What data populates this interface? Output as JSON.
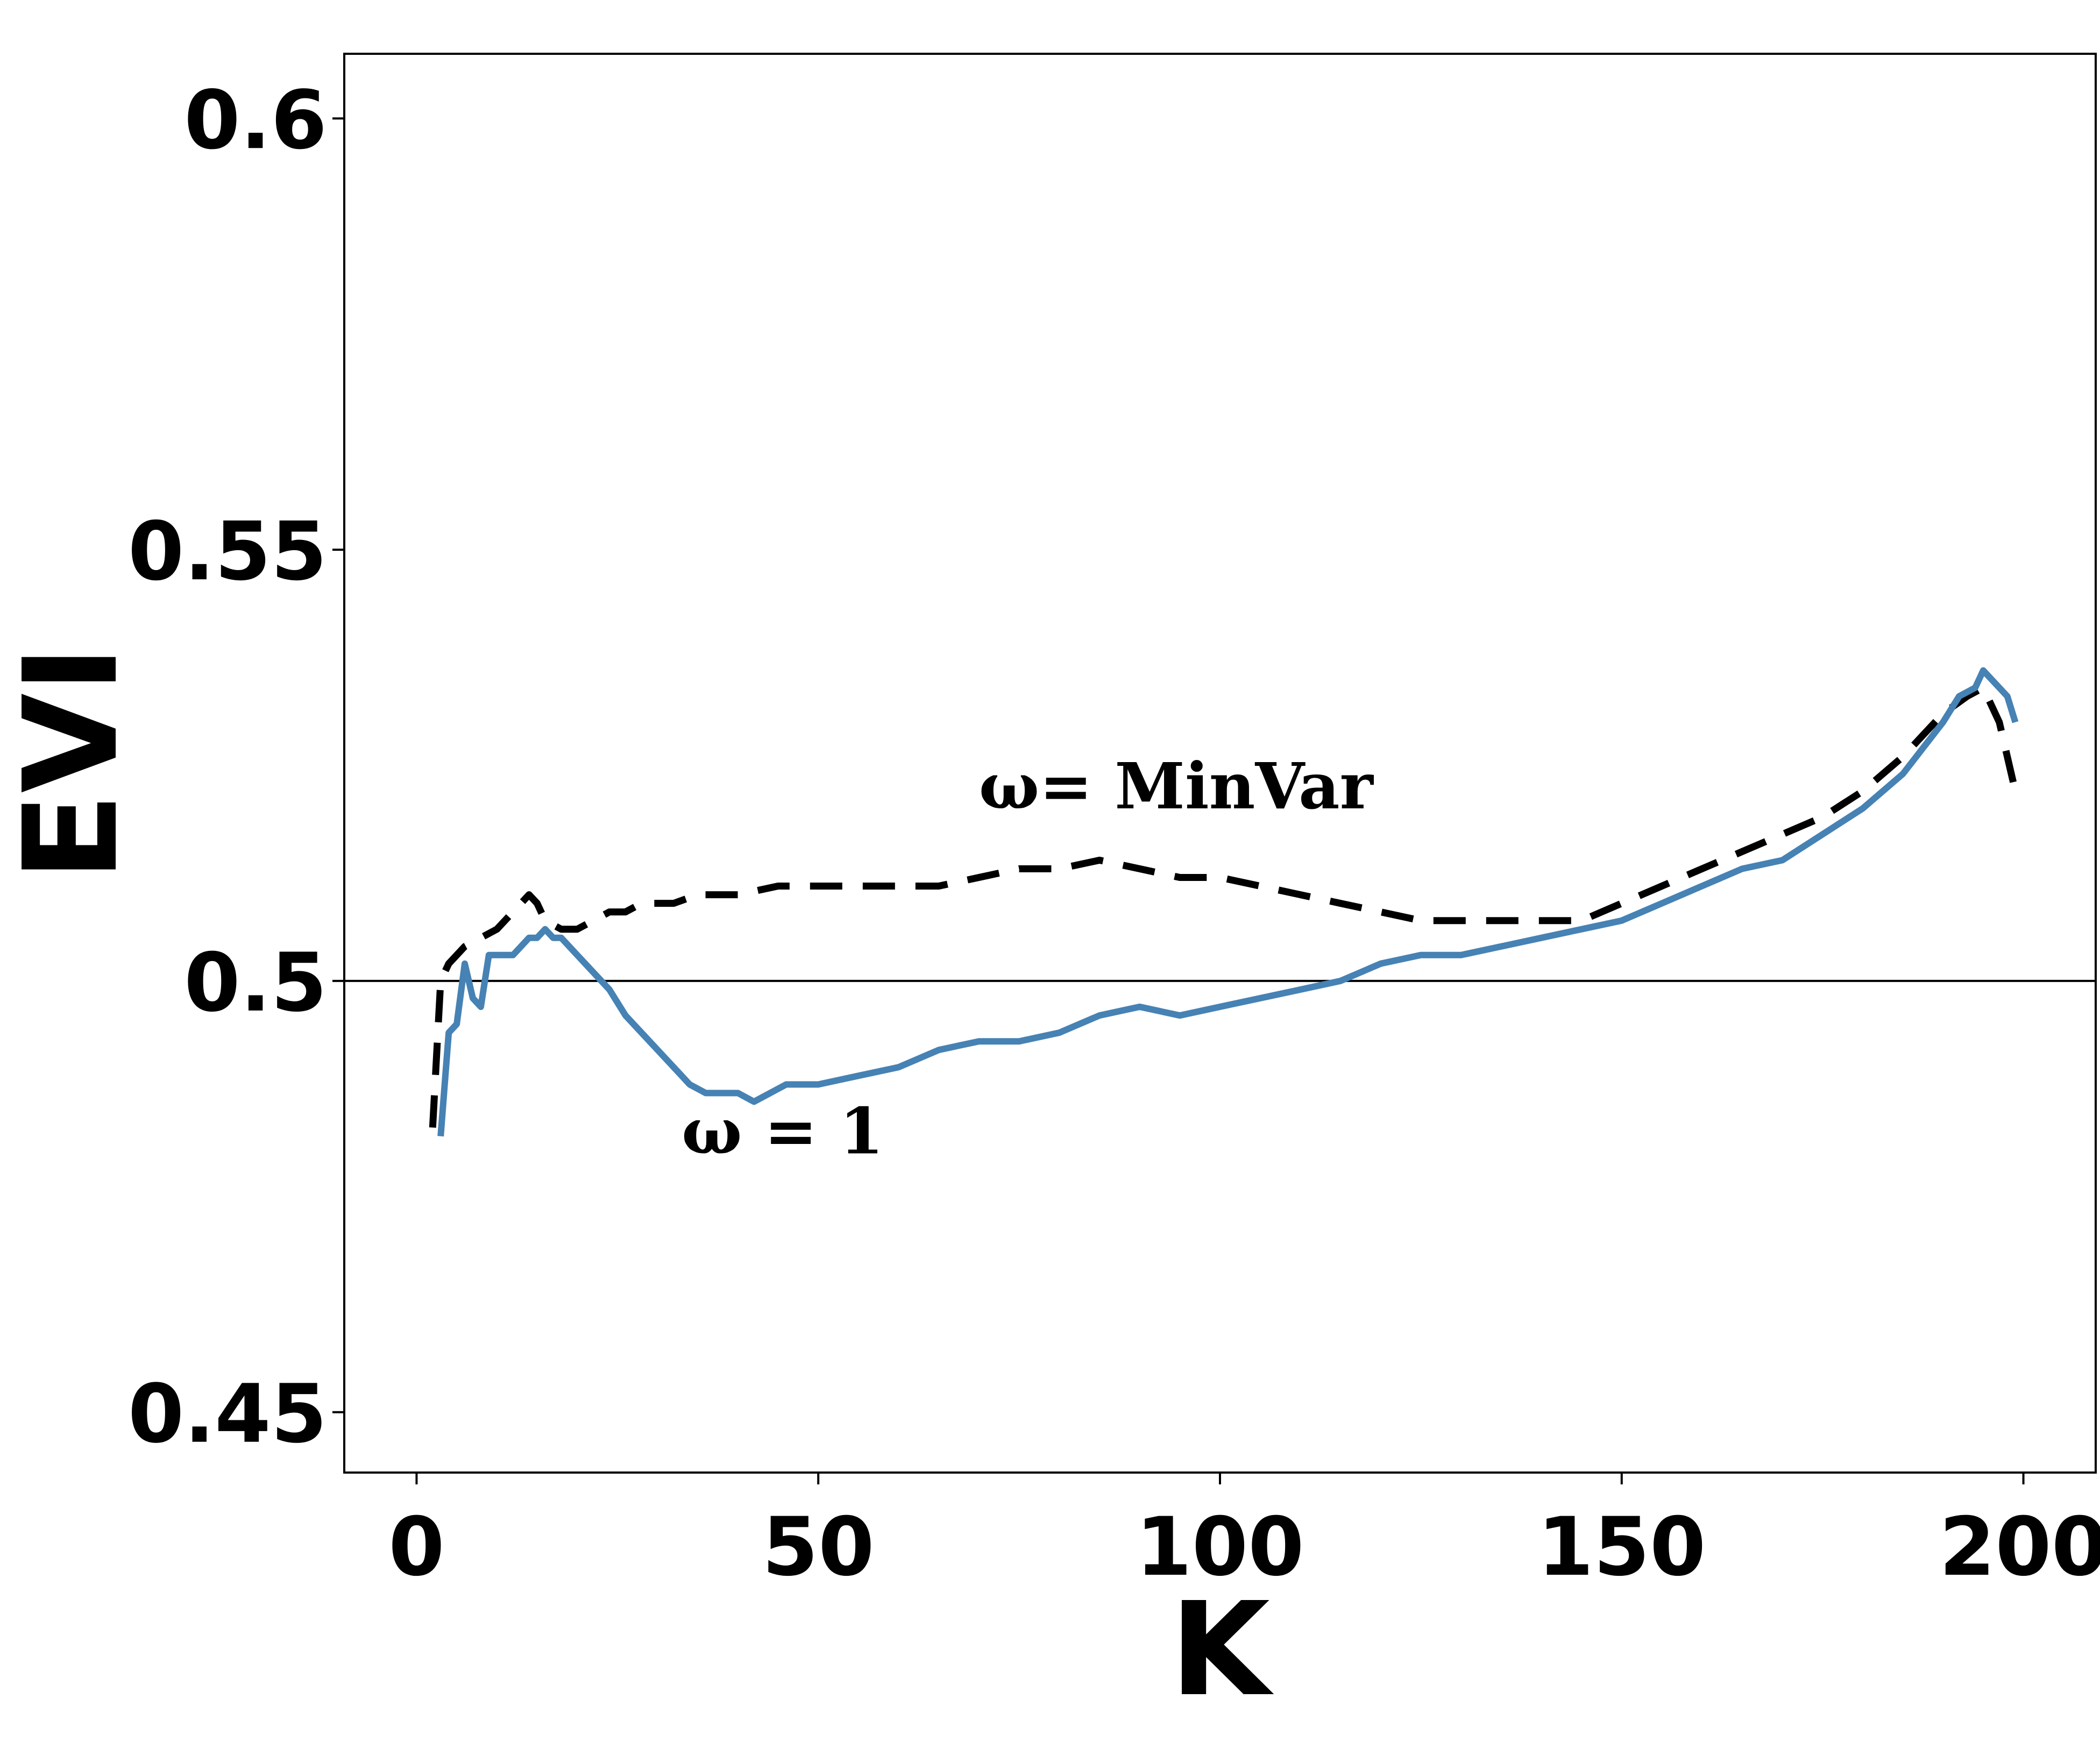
{
  "chart_data": {
    "type": "line",
    "title": "",
    "xlabel": "K",
    "ylabel": "EVI",
    "xlim": [
      -9,
      209
    ],
    "ylim": [
      0.443,
      0.6075
    ],
    "xticks": [
      0,
      50,
      100,
      150,
      200
    ],
    "yticks": [
      0.45,
      0.5,
      0.55,
      0.6
    ],
    "xtick_labels": [
      "0",
      "50",
      "100",
      "150",
      "200"
    ],
    "ytick_labels": [
      "0.45",
      "0.5",
      "0.55",
      "0.6"
    ],
    "grid": false,
    "legend": "none",
    "reference_line": {
      "y": 0.5,
      "color": "#000000"
    },
    "annotations": [
      {
        "text": "ω= MinVar",
        "x": 70,
        "y": 0.52
      },
      {
        "text": "ω = 1",
        "x": 33,
        "y": 0.48
      }
    ],
    "series": [
      {
        "color": "#000000",
        "style": "dashed",
        "x": [
          2,
          3,
          4,
          5,
          6,
          8,
          10,
          12,
          14,
          15,
          16,
          18,
          20,
          22,
          24,
          26,
          28,
          30,
          32,
          35,
          38,
          40,
          45,
          50,
          55,
          60,
          65,
          70,
          75,
          80,
          85,
          90,
          95,
          100,
          105,
          110,
          115,
          120,
          125,
          130,
          135,
          140,
          145,
          150,
          155,
          160,
          165,
          170,
          175,
          180,
          185,
          190,
          193,
          195,
          197,
          199
        ],
        "y": [
          0.483,
          0.5,
          0.502,
          0.503,
          0.504,
          0.505,
          0.506,
          0.508,
          0.51,
          0.509,
          0.507,
          0.506,
          0.506,
          0.507,
          0.508,
          0.508,
          0.509,
          0.509,
          0.509,
          0.51,
          0.51,
          0.51,
          0.511,
          0.511,
          0.511,
          0.511,
          0.511,
          0.512,
          0.513,
          0.513,
          0.514,
          0.513,
          0.512,
          0.512,
          0.511,
          0.51,
          0.509,
          0.508,
          0.507,
          0.507,
          0.507,
          0.507,
          0.507,
          0.509,
          0.511,
          0.513,
          0.515,
          0.517,
          0.519,
          0.522,
          0.526,
          0.531,
          0.533,
          0.534,
          0.53,
          0.522
        ]
      },
      {
        "color": "#4682b4",
        "style": "solid",
        "x": [
          3,
          4,
          5,
          6,
          7,
          8,
          9,
          10,
          12,
          14,
          15,
          16,
          17,
          18,
          20,
          22,
          24,
          26,
          28,
          30,
          32,
          34,
          36,
          38,
          40,
          42,
          44,
          46,
          48,
          50,
          55,
          60,
          65,
          70,
          75,
          80,
          85,
          90,
          95,
          100,
          105,
          110,
          115,
          120,
          125,
          130,
          135,
          140,
          145,
          150,
          155,
          160,
          165,
          170,
          175,
          180,
          185,
          190,
          192,
          194,
          195,
          196,
          198,
          199
        ],
        "y": [
          0.482,
          0.494,
          0.495,
          0.502,
          0.498,
          0.497,
          0.503,
          0.503,
          0.503,
          0.505,
          0.505,
          0.506,
          0.505,
          0.505,
          0.503,
          0.501,
          0.499,
          0.496,
          0.494,
          0.492,
          0.49,
          0.488,
          0.487,
          0.487,
          0.487,
          0.486,
          0.487,
          0.488,
          0.488,
          0.488,
          0.489,
          0.49,
          0.492,
          0.493,
          0.493,
          0.494,
          0.496,
          0.497,
          0.496,
          0.497,
          0.498,
          0.499,
          0.5,
          0.502,
          0.503,
          0.503,
          0.504,
          0.505,
          0.506,
          0.507,
          0.509,
          0.511,
          0.513,
          0.514,
          0.517,
          0.52,
          0.524,
          0.53,
          0.533,
          0.534,
          0.536,
          0.535,
          0.533,
          0.53
        ]
      }
    ]
  }
}
